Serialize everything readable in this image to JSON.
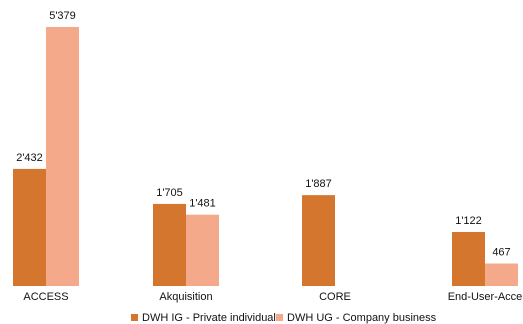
{
  "chart_data": {
    "type": "bar",
    "categories": [
      "ACCESS",
      "Akquisition",
      "CORE",
      "End-User-Acce"
    ],
    "series": [
      {
        "name": "DWH IG - Private individuals",
        "color": "#D4762E",
        "values": [
          2432,
          1705,
          1887,
          1122
        ],
        "labels": [
          "2'432",
          "1'705",
          "1'887",
          "1'122"
        ]
      },
      {
        "name": "DWH UG - Company business",
        "color": "#F4A98A",
        "values": [
          5379,
          1481,
          null,
          467
        ],
        "labels": [
          "5'379",
          "1'481",
          "",
          "467"
        ]
      }
    ],
    "ylim": [
      0,
      5379
    ],
    "grid": false,
    "legend_position": "bottom"
  }
}
